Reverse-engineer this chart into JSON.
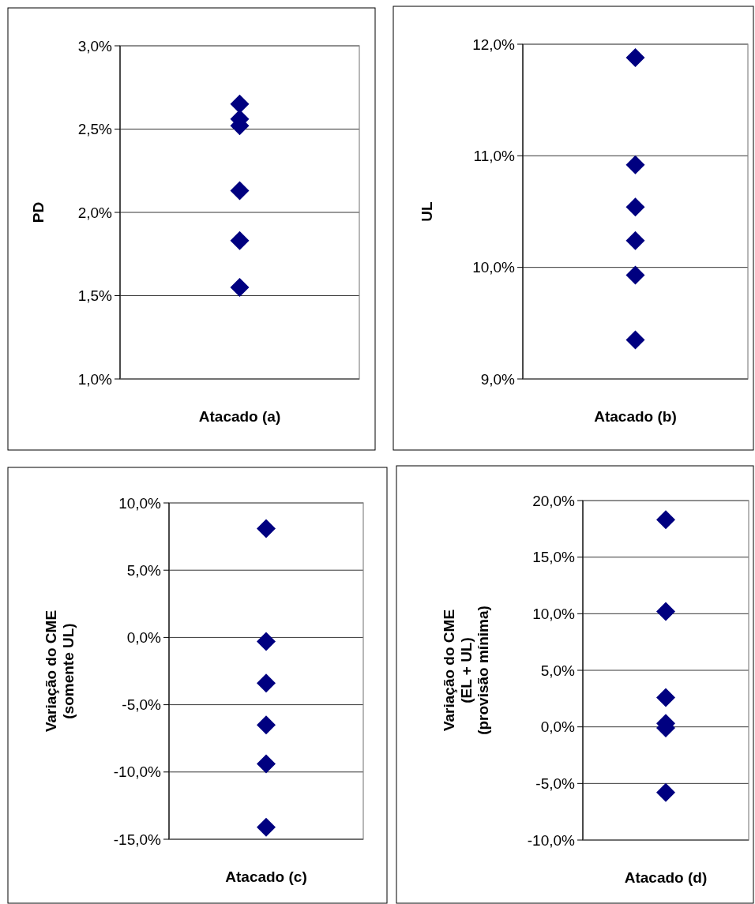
{
  "chart_data": [
    {
      "type": "scatter",
      "ylabel": "PD",
      "xlabel": "Atacado (a)",
      "categories": [
        null
      ],
      "marker": "diamond",
      "grid": "y",
      "ylim": [
        1.0,
        3.0
      ],
      "yticks": [
        {
          "value": 1.0,
          "label": "1,0%"
        },
        {
          "value": 1.5,
          "label": "1,5%"
        },
        {
          "value": 2.0,
          "label": "2,0%"
        },
        {
          "value": 2.5,
          "label": "2,5%"
        },
        {
          "value": 3.0,
          "label": "3,0%"
        }
      ],
      "series": [
        {
          "color": "#000080",
          "values": [
            2.65
          ]
        },
        {
          "color": "#000080",
          "values": [
            2.56
          ]
        },
        {
          "color": "#000080",
          "values": [
            2.52
          ]
        },
        {
          "color": "#000080",
          "values": [
            2.13
          ]
        },
        {
          "color": "#000080",
          "values": [
            1.83
          ]
        },
        {
          "color": "#000080",
          "values": [
            1.55
          ]
        }
      ]
    },
    {
      "type": "scatter",
      "ylabel": "UL",
      "xlabel": "Atacado (b)",
      "categories": [
        null
      ],
      "marker": "diamond",
      "grid": "y",
      "ylim": [
        9.0,
        12.0
      ],
      "yticks": [
        {
          "value": 9.0,
          "label": "9,0%"
        },
        {
          "value": 10.0,
          "label": "10,0%"
        },
        {
          "value": 11.0,
          "label": "11,0%"
        },
        {
          "value": 12.0,
          "label": "12,0%"
        }
      ],
      "series": [
        {
          "color": "#000080",
          "values": [
            11.88
          ]
        },
        {
          "color": "#000080",
          "values": [
            10.92
          ]
        },
        {
          "color": "#000080",
          "values": [
            10.54
          ]
        },
        {
          "color": "#000080",
          "values": [
            10.24
          ]
        },
        {
          "color": "#000080",
          "values": [
            9.93
          ]
        },
        {
          "color": "#000080",
          "values": [
            9.35
          ]
        }
      ]
    },
    {
      "type": "scatter",
      "ylabel": "Variação do CME\n(somente UL)",
      "xlabel": "Atacado (c)",
      "categories": [
        null
      ],
      "marker": "diamond",
      "grid": "y",
      "ylim": [
        -15.0,
        10.0
      ],
      "yticks": [
        {
          "value": -15,
          "label": "-15,0%"
        },
        {
          "value": -10,
          "label": "-10,0%"
        },
        {
          "value": -5,
          "label": "-5,0%"
        },
        {
          "value": 0,
          "label": "0,0%"
        },
        {
          "value": 5,
          "label": "5,0%"
        },
        {
          "value": 10,
          "label": "10,0%"
        }
      ],
      "series": [
        {
          "color": "#000080",
          "values": [
            8.1
          ]
        },
        {
          "color": "#000080",
          "values": [
            -0.3
          ]
        },
        {
          "color": "#000080",
          "values": [
            -3.4
          ]
        },
        {
          "color": "#000080",
          "values": [
            -6.5
          ]
        },
        {
          "color": "#000080",
          "values": [
            -9.4
          ]
        },
        {
          "color": "#000080",
          "values": [
            -14.1
          ]
        }
      ]
    },
    {
      "type": "scatter",
      "ylabel": "Variação do CME\n(EL + UL)\n(provisão mínima)",
      "xlabel": "Atacado (d)",
      "categories": [
        null
      ],
      "marker": "diamond",
      "grid": "y",
      "ylim": [
        -10.0,
        20.0
      ],
      "yticks": [
        {
          "value": -10,
          "label": "-10,0%"
        },
        {
          "value": -5,
          "label": "-5,0%"
        },
        {
          "value": 0,
          "label": "0,0%"
        },
        {
          "value": 5,
          "label": "5,0%"
        },
        {
          "value": 10,
          "label": "10,0%"
        },
        {
          "value": 15,
          "label": "15,0%"
        },
        {
          "value": 20,
          "label": "20,0%"
        }
      ],
      "series": [
        {
          "color": "#000080",
          "values": [
            18.3
          ]
        },
        {
          "color": "#000080",
          "values": [
            10.2
          ]
        },
        {
          "color": "#000080",
          "values": [
            2.6
          ]
        },
        {
          "color": "#000080",
          "values": [
            0.3
          ]
        },
        {
          "color": "#000080",
          "values": [
            -0.1
          ]
        },
        {
          "color": "#000080",
          "values": [
            -5.8
          ]
        }
      ]
    }
  ]
}
